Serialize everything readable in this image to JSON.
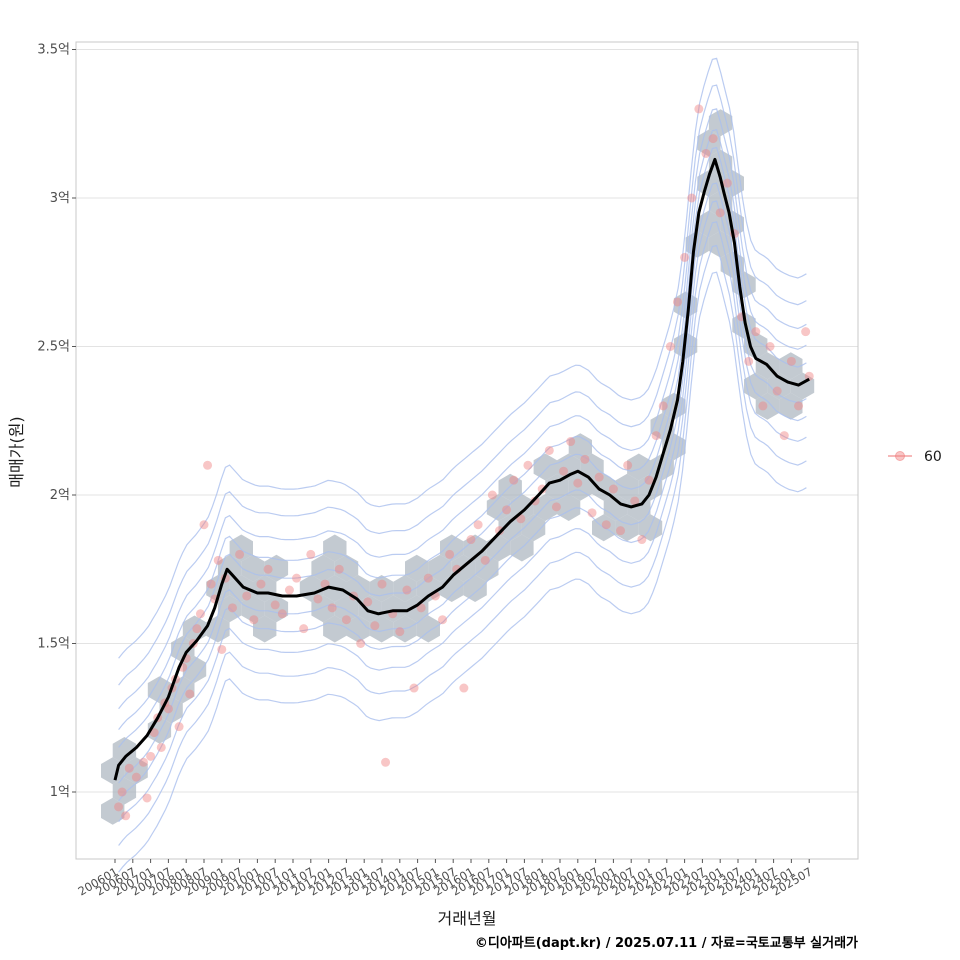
{
  "chart_data": {
    "type": "scatter",
    "title": "",
    "xlabel": "거래년월",
    "ylabel": "매매가(원)",
    "caption": "©디아파트(dapt.kr) / 2025.07.11 / 자료=국토교통부 실거래가",
    "legend": {
      "position": "right",
      "entries": [
        "60"
      ]
    },
    "ylim": [
      0.78,
      3.55
    ],
    "y_ticks": [
      {
        "value": 1.0,
        "label": "1억"
      },
      {
        "value": 1.5,
        "label": "1.5억"
      },
      {
        "value": 2.0,
        "label": "2억"
      },
      {
        "value": 2.5,
        "label": "2.5억"
      },
      {
        "value": 3.0,
        "label": "3억"
      },
      {
        "value": 3.5,
        "label": "3.5억"
      }
    ],
    "x_ticks": [
      "200601",
      "200607",
      "200701",
      "200707",
      "200801",
      "200807",
      "200901",
      "200907",
      "201001",
      "201007",
      "201101",
      "201107",
      "201201",
      "201207",
      "201301",
      "201307",
      "201401",
      "201407",
      "201501",
      "201507",
      "201601",
      "201607",
      "201701",
      "201707",
      "201801",
      "201807",
      "201901",
      "201907",
      "202001",
      "202007",
      "202101",
      "202107",
      "202201",
      "202207",
      "202301",
      "202307",
      "202401",
      "202407",
      "202501",
      "202507"
    ],
    "series": [
      {
        "name": "60",
        "smoothed_line": [
          [
            2006.0,
            1.04
          ],
          [
            2006.1,
            1.09
          ],
          [
            2006.3,
            1.12
          ],
          [
            2006.6,
            1.15
          ],
          [
            2006.9,
            1.19
          ],
          [
            2007.2,
            1.25
          ],
          [
            2007.5,
            1.32
          ],
          [
            2007.8,
            1.42
          ],
          [
            2008.0,
            1.47
          ],
          [
            2008.3,
            1.51
          ],
          [
            2008.6,
            1.56
          ],
          [
            2008.8,
            1.62
          ],
          [
            2009.0,
            1.7
          ],
          [
            2009.15,
            1.75
          ],
          [
            2009.3,
            1.73
          ],
          [
            2009.6,
            1.69
          ],
          [
            2010.0,
            1.67
          ],
          [
            2010.3,
            1.67
          ],
          [
            2010.7,
            1.66
          ],
          [
            2011.1,
            1.66
          ],
          [
            2011.6,
            1.67
          ],
          [
            2012.0,
            1.69
          ],
          [
            2012.4,
            1.68
          ],
          [
            2012.8,
            1.65
          ],
          [
            2013.1,
            1.61
          ],
          [
            2013.4,
            1.6
          ],
          [
            2013.8,
            1.61
          ],
          [
            2014.2,
            1.61
          ],
          [
            2014.5,
            1.63
          ],
          [
            2014.8,
            1.66
          ],
          [
            2015.2,
            1.69
          ],
          [
            2015.5,
            1.73
          ],
          [
            2015.9,
            1.77
          ],
          [
            2016.3,
            1.81
          ],
          [
            2016.7,
            1.86
          ],
          [
            2017.1,
            1.91
          ],
          [
            2017.5,
            1.95
          ],
          [
            2017.9,
            2.0
          ],
          [
            2018.2,
            2.04
          ],
          [
            2018.5,
            2.05
          ],
          [
            2018.8,
            2.07
          ],
          [
            2019.0,
            2.08
          ],
          [
            2019.3,
            2.06
          ],
          [
            2019.6,
            2.02
          ],
          [
            2019.9,
            2.0
          ],
          [
            2020.2,
            1.97
          ],
          [
            2020.5,
            1.96
          ],
          [
            2020.8,
            1.97
          ],
          [
            2021.0,
            2.0
          ],
          [
            2021.2,
            2.06
          ],
          [
            2021.4,
            2.14
          ],
          [
            2021.6,
            2.22
          ],
          [
            2021.8,
            2.32
          ],
          [
            2021.95,
            2.45
          ],
          [
            2022.1,
            2.62
          ],
          [
            2022.25,
            2.82
          ],
          [
            2022.4,
            2.95
          ],
          [
            2022.55,
            3.02
          ],
          [
            2022.7,
            3.08
          ],
          [
            2022.85,
            3.13
          ],
          [
            2023.0,
            3.07
          ],
          [
            2023.1,
            3.02
          ],
          [
            2023.25,
            2.95
          ],
          [
            2023.4,
            2.85
          ],
          [
            2023.55,
            2.7
          ],
          [
            2023.7,
            2.58
          ],
          [
            2023.85,
            2.5
          ],
          [
            2024.0,
            2.46
          ],
          [
            2024.3,
            2.44
          ],
          [
            2024.6,
            2.4
          ],
          [
            2024.9,
            2.38
          ],
          [
            2025.2,
            2.37
          ],
          [
            2025.5,
            2.39
          ]
        ],
        "points": [
          [
            2006.1,
            0.95
          ],
          [
            2006.2,
            1.0
          ],
          [
            2006.3,
            0.92
          ],
          [
            2006.4,
            1.08
          ],
          [
            2006.6,
            1.05
          ],
          [
            2006.8,
            1.1
          ],
          [
            2006.9,
            0.98
          ],
          [
            2007.0,
            1.12
          ],
          [
            2007.1,
            1.2
          ],
          [
            2007.2,
            1.25
          ],
          [
            2007.3,
            1.15
          ],
          [
            2007.4,
            1.3
          ],
          [
            2007.5,
            1.28
          ],
          [
            2007.6,
            1.35
          ],
          [
            2007.7,
            1.38
          ],
          [
            2007.8,
            1.22
          ],
          [
            2007.9,
            1.42
          ],
          [
            2008.0,
            1.45
          ],
          [
            2008.1,
            1.33
          ],
          [
            2008.2,
            1.5
          ],
          [
            2008.3,
            1.55
          ],
          [
            2008.4,
            1.6
          ],
          [
            2008.5,
            1.9
          ],
          [
            2008.6,
            2.1
          ],
          [
            2008.7,
            1.7
          ],
          [
            2008.8,
            1.65
          ],
          [
            2008.9,
            1.78
          ],
          [
            2009.0,
            1.48
          ],
          [
            2009.1,
            1.72
          ],
          [
            2009.3,
            1.62
          ],
          [
            2009.5,
            1.8
          ],
          [
            2009.7,
            1.66
          ],
          [
            2009.9,
            1.58
          ],
          [
            2010.1,
            1.7
          ],
          [
            2010.3,
            1.75
          ],
          [
            2010.5,
            1.63
          ],
          [
            2010.7,
            1.6
          ],
          [
            2010.9,
            1.68
          ],
          [
            2011.1,
            1.72
          ],
          [
            2011.3,
            1.55
          ],
          [
            2011.5,
            1.8
          ],
          [
            2011.7,
            1.65
          ],
          [
            2011.9,
            1.7
          ],
          [
            2012.1,
            1.62
          ],
          [
            2012.3,
            1.75
          ],
          [
            2012.5,
            1.58
          ],
          [
            2012.7,
            1.66
          ],
          [
            2012.9,
            1.5
          ],
          [
            2013.1,
            1.64
          ],
          [
            2013.3,
            1.56
          ],
          [
            2013.5,
            1.7
          ],
          [
            2013.6,
            1.1
          ],
          [
            2013.8,
            1.6
          ],
          [
            2014.0,
            1.54
          ],
          [
            2014.2,
            1.68
          ],
          [
            2014.4,
            1.35
          ],
          [
            2014.6,
            1.62
          ],
          [
            2014.8,
            1.72
          ],
          [
            2015.0,
            1.66
          ],
          [
            2015.2,
            1.58
          ],
          [
            2015.4,
            1.8
          ],
          [
            2015.6,
            1.75
          ],
          [
            2015.8,
            1.35
          ],
          [
            2016.0,
            1.85
          ],
          [
            2016.2,
            1.9
          ],
          [
            2016.4,
            1.78
          ],
          [
            2016.6,
            2.0
          ],
          [
            2016.8,
            1.88
          ],
          [
            2017.0,
            1.95
          ],
          [
            2017.2,
            2.05
          ],
          [
            2017.4,
            1.92
          ],
          [
            2017.6,
            2.1
          ],
          [
            2017.8,
            1.98
          ],
          [
            2018.0,
            2.02
          ],
          [
            2018.2,
            2.15
          ],
          [
            2018.4,
            1.96
          ],
          [
            2018.6,
            2.08
          ],
          [
            2018.8,
            2.18
          ],
          [
            2019.0,
            2.04
          ],
          [
            2019.2,
            2.12
          ],
          [
            2019.4,
            1.94
          ],
          [
            2019.6,
            2.06
          ],
          [
            2019.8,
            1.9
          ],
          [
            2020.0,
            2.02
          ],
          [
            2020.2,
            1.88
          ],
          [
            2020.4,
            2.1
          ],
          [
            2020.6,
            1.98
          ],
          [
            2020.8,
            1.85
          ],
          [
            2021.0,
            2.05
          ],
          [
            2021.2,
            2.2
          ],
          [
            2021.4,
            2.3
          ],
          [
            2021.6,
            2.5
          ],
          [
            2021.8,
            2.65
          ],
          [
            2022.0,
            2.8
          ],
          [
            2022.2,
            3.0
          ],
          [
            2022.4,
            3.3
          ],
          [
            2022.6,
            3.15
          ],
          [
            2022.8,
            3.2
          ],
          [
            2023.0,
            2.95
          ],
          [
            2023.2,
            3.05
          ],
          [
            2023.4,
            2.88
          ],
          [
            2023.6,
            2.6
          ],
          [
            2023.8,
            2.45
          ],
          [
            2024.0,
            2.55
          ],
          [
            2024.2,
            2.3
          ],
          [
            2024.4,
            2.5
          ],
          [
            2024.6,
            2.35
          ],
          [
            2024.8,
            2.2
          ],
          [
            2025.0,
            2.45
          ],
          [
            2025.2,
            2.3
          ],
          [
            2025.4,
            2.55
          ],
          [
            2025.5,
            2.4
          ]
        ]
      }
    ],
    "colors": {
      "points": "#f08080",
      "line": "#000000",
      "hexbin": "#a9b3bd",
      "contour": "#aabfee",
      "grid": "#e3e3e3",
      "panel_border": "#c8c8c8"
    }
  }
}
